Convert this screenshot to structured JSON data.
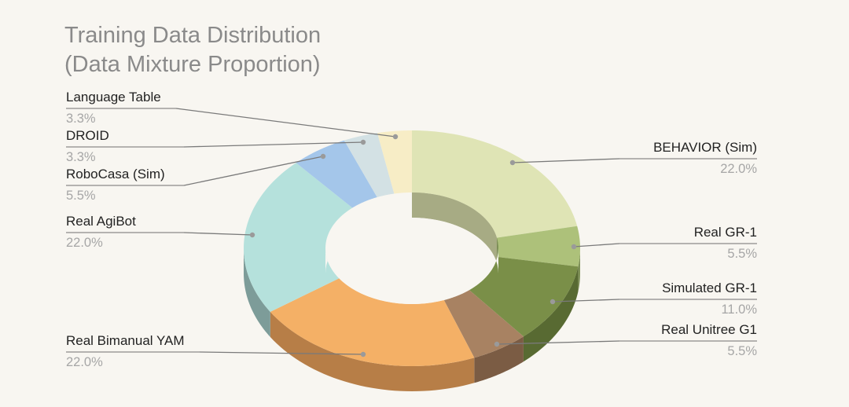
{
  "chart_data": {
    "type": "pie",
    "variant": "3d-donut",
    "title_lines": [
      "Training Data Distribution",
      "(Data Mixture Proportion)"
    ],
    "unit": "%",
    "slices": [
      {
        "label": "BEHAVIOR (Sim)",
        "value": 22.0,
        "display": "22.0%",
        "color": "#dfe4b5",
        "side_color": "#a7ab84",
        "label_side": "right"
      },
      {
        "label": "Real GR-1",
        "value": 5.5,
        "display": "5.5%",
        "color": "#adc17a",
        "side_color": "#7d8f56",
        "label_side": "right"
      },
      {
        "label": "Simulated GR-1",
        "value": 11.0,
        "display": "11.0%",
        "color": "#7a8f48",
        "side_color": "#586a32",
        "label_side": "right"
      },
      {
        "label": "Real Unitree G1",
        "value": 5.5,
        "display": "5.5%",
        "color": "#a88262",
        "side_color": "#7b5c44",
        "label_side": "right"
      },
      {
        "label": "Real Bimanual YAM",
        "value": 22.0,
        "display": "22.0%",
        "color": "#f4b066",
        "side_color": "#b77e47",
        "label_side": "left"
      },
      {
        "label": "Real AgiBot",
        "value": 22.0,
        "display": "22.0%",
        "color": "#b5e1dc",
        "side_color": "#7d9c99",
        "label_side": "left"
      },
      {
        "label": "RoboCasa (Sim)",
        "value": 5.5,
        "display": "5.5%",
        "color": "#a4c6ea",
        "side_color": "#6f8db0",
        "label_side": "left"
      },
      {
        "label": "DROID",
        "value": 3.3,
        "display": "3.3%",
        "color": "#d3e1e4",
        "side_color": "#9aa8ab",
        "label_side": "left"
      },
      {
        "label": "Language Table",
        "value": 3.3,
        "display": "3.3%",
        "color": "#f7edc6",
        "side_color": "#c2b78c",
        "label_side": "left"
      }
    ]
  }
}
